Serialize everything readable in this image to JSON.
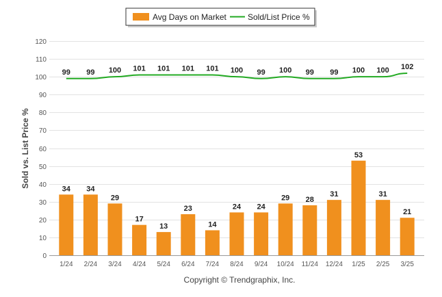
{
  "chart_data": {
    "type": "bar",
    "categories": [
      "1/24",
      "2/24",
      "3/24",
      "4/24",
      "5/24",
      "6/24",
      "7/24",
      "8/24",
      "9/24",
      "10/24",
      "11/24",
      "12/24",
      "1/25",
      "2/25",
      "3/25"
    ],
    "series": [
      {
        "name": "Avg Days on Market",
        "type": "bar",
        "color": "#f0901e",
        "values": [
          34,
          34,
          29,
          17,
          13,
          23,
          14,
          24,
          24,
          29,
          28,
          31,
          53,
          31,
          21
        ]
      },
      {
        "name": "Sold/List Price %",
        "type": "line",
        "color": "#22aa22",
        "values": [
          99,
          99,
          100,
          101,
          101,
          101,
          101,
          100,
          99,
          100,
          99,
          99,
          100,
          100,
          102
        ]
      }
    ],
    "ylabel": "Sold vs. List Price %",
    "ylim": [
      0,
      120
    ],
    "yticks": [
      0,
      10,
      20,
      30,
      40,
      50,
      60,
      70,
      80,
      90,
      100,
      110,
      120
    ],
    "grid": true,
    "legend_position": "top-center"
  },
  "footer": "Copyright © Trendgraphix, Inc."
}
